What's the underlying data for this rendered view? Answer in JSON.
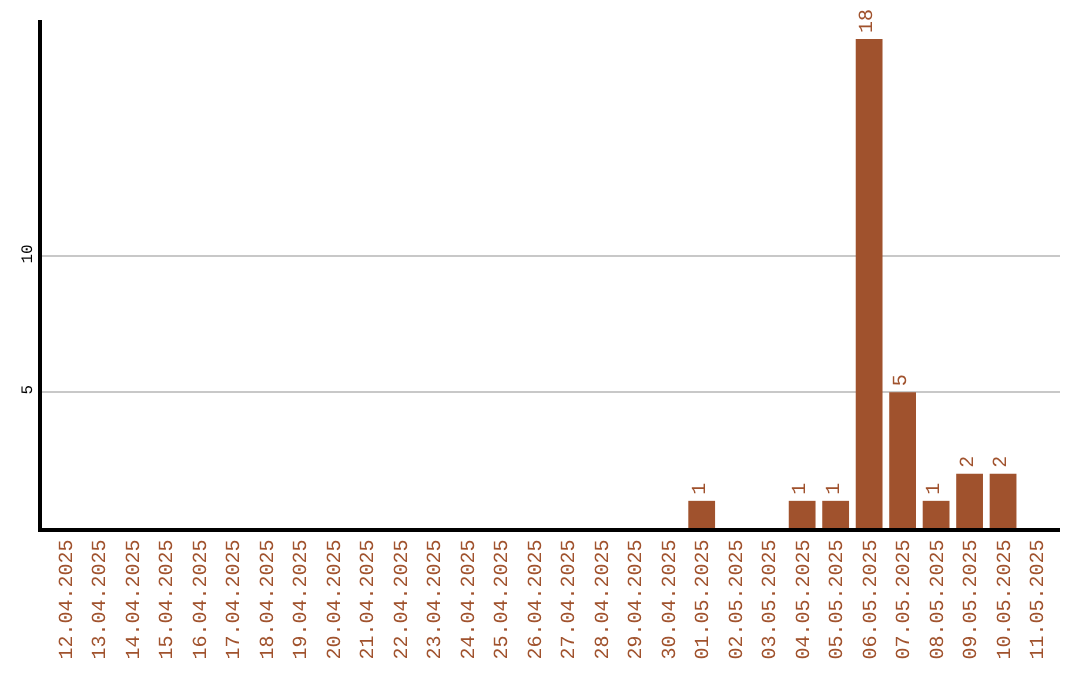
{
  "chart_data": {
    "type": "bar",
    "categories": [
      "12.04.2025",
      "13.04.2025",
      "14.04.2025",
      "15.04.2025",
      "16.04.2025",
      "17.04.2025",
      "18.04.2025",
      "19.04.2025",
      "20.04.2025",
      "21.04.2025",
      "22.04.2025",
      "23.04.2025",
      "24.04.2025",
      "25.04.2025",
      "26.04.2025",
      "27.04.2025",
      "28.04.2025",
      "29.04.2025",
      "30.04.2025",
      "01.05.2025",
      "02.05.2025",
      "03.05.2025",
      "04.05.2025",
      "05.05.2025",
      "06.05.2025",
      "07.05.2025",
      "08.05.2025",
      "09.05.2025",
      "10.05.2025",
      "11.05.2025"
    ],
    "values": [
      0,
      0,
      0,
      0,
      0,
      0,
      0,
      0,
      0,
      0,
      0,
      0,
      0,
      0,
      0,
      0,
      0,
      0,
      0,
      1,
      0,
      0,
      1,
      1,
      18,
      5,
      1,
      2,
      2,
      0
    ],
    "value_labels": [
      null,
      null,
      null,
      null,
      null,
      null,
      null,
      null,
      null,
      null,
      null,
      null,
      null,
      null,
      null,
      null,
      null,
      null,
      null,
      "1",
      null,
      null,
      "1",
      "1",
      "18",
      "5",
      "1",
      "2",
      "2",
      null
    ],
    "color": "#a0522d",
    "ylim": [
      0,
      18.7
    ],
    "yticks": [
      5,
      10
    ],
    "grid": "y",
    "legend": false
  }
}
